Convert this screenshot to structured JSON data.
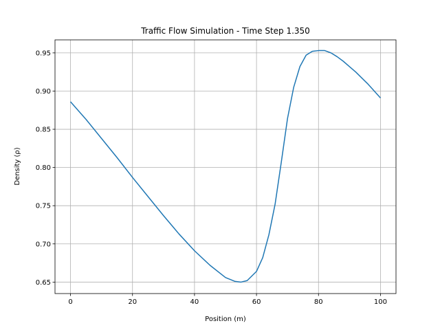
{
  "chart_data": {
    "type": "line",
    "title": "Traffic Flow Simulation - Time Step 1.350",
    "xlabel": "Position (m)",
    "ylabel": "Density (ρ)",
    "xlim": [
      -5,
      105
    ],
    "ylim": [
      0.635,
      0.967
    ],
    "xticks": [
      0,
      20,
      40,
      60,
      80,
      100
    ],
    "xtick_labels": [
      "0",
      "20",
      "40",
      "60",
      "80",
      "100"
    ],
    "yticks": [
      0.65,
      0.7,
      0.75,
      0.8,
      0.85,
      0.9,
      0.95
    ],
    "ytick_labels": [
      "0.65",
      "0.70",
      "0.75",
      "0.80",
      "0.85",
      "0.90",
      "0.95"
    ],
    "grid": true,
    "line_color": "#1f77b4",
    "series": [
      {
        "x": [
          0,
          5,
          10,
          15,
          20,
          25,
          30,
          35,
          40,
          45,
          50,
          53,
          55,
          57,
          60,
          62,
          64,
          66,
          68,
          70,
          72,
          74,
          76,
          78,
          80,
          82,
          84,
          86,
          88,
          90,
          92,
          94,
          96,
          98,
          100
        ],
        "y": [
          0.886,
          0.863,
          0.838,
          0.813,
          0.787,
          0.762,
          0.737,
          0.713,
          0.691,
          0.672,
          0.656,
          0.651,
          0.65,
          0.652,
          0.664,
          0.682,
          0.712,
          0.752,
          0.807,
          0.864,
          0.905,
          0.932,
          0.947,
          0.952,
          0.953,
          0.953,
          0.95,
          0.945,
          0.939,
          0.932,
          0.925,
          0.917,
          0.909,
          0.9,
          0.891
        ]
      }
    ]
  }
}
